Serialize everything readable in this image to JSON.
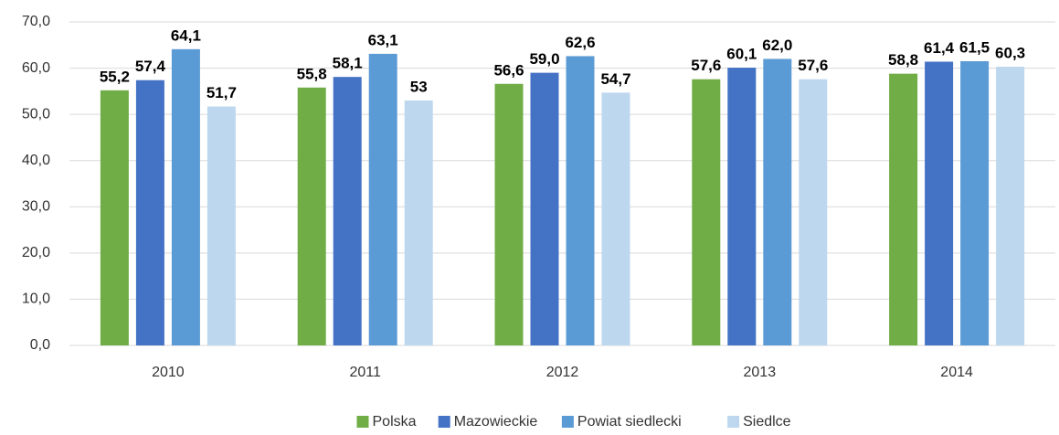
{
  "chart_data": {
    "type": "bar",
    "categories": [
      "2010",
      "2011",
      "2012",
      "2013",
      "2014"
    ],
    "series": [
      {
        "name": "Polska",
        "color": "#70ad47",
        "values": [
          55.2,
          55.8,
          56.6,
          57.6,
          58.8
        ],
        "value_labels": [
          "55,2",
          "55,8",
          "56,6",
          "57,6",
          "58,8"
        ]
      },
      {
        "name": "Mazowieckie",
        "color": "#4472c4",
        "values": [
          57.4,
          58.1,
          59.0,
          60.1,
          61.4
        ],
        "value_labels": [
          "57,4",
          "58,1",
          "59,0",
          "60,1",
          "61,4"
        ]
      },
      {
        "name": "Powiat siedlecki",
        "color": "#5b9bd5",
        "values": [
          64.1,
          63.1,
          62.6,
          62.0,
          61.5
        ],
        "value_labels": [
          "64,1",
          "63,1",
          "62,6",
          "62,0",
          "61,5"
        ]
      },
      {
        "name": "Siedlce",
        "color": "#bdd7ee",
        "values": [
          51.7,
          53,
          54.7,
          57.6,
          60.3
        ],
        "value_labels": [
          "51,7",
          "53",
          "54,7",
          "57,6",
          "60,3"
        ]
      }
    ],
    "ylim": [
      0,
      70
    ],
    "yticks": [
      {
        "value": 0,
        "label": "0,0"
      },
      {
        "value": 10,
        "label": "10,0"
      },
      {
        "value": 20,
        "label": "20,0"
      },
      {
        "value": 30,
        "label": "30,0"
      },
      {
        "value": 40,
        "label": "40,0"
      },
      {
        "value": 50,
        "label": "50,0"
      },
      {
        "value": 60,
        "label": "60,0"
      },
      {
        "value": 70,
        "label": "70,0"
      }
    ],
    "grid": true,
    "legend": "bottom"
  }
}
